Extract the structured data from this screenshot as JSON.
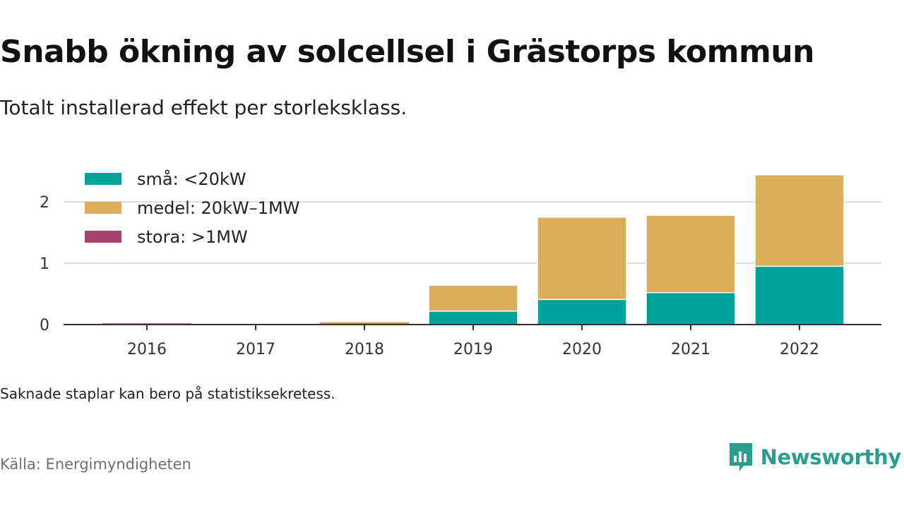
{
  "title": "Snabb ökning av solcellsel i Grästorps kommun",
  "subtitle": "Totalt installerad effekt per storleksklass.",
  "note": "Saknade staplar kan bero på statistiksekretess.",
  "source": "Källa: Energimyndigheten",
  "brand": {
    "name": "Newsworthy",
    "icon": "newsworthy-logo-icon",
    "color": "#2a9d8f"
  },
  "chart_data": {
    "type": "bar",
    "stacked": true,
    "categories": [
      "2016",
      "2017",
      "2018",
      "2019",
      "2020",
      "2021",
      "2022"
    ],
    "series": [
      {
        "name": "små: <20kW",
        "color": "#00a39a",
        "values": [
          0.02,
          0,
          0.02,
          0.22,
          0.41,
          0.52,
          0.95
        ]
      },
      {
        "name": "medel: 20kW–1MW",
        "color": "#dcad5b",
        "values": [
          0,
          0,
          0.02,
          0.42,
          1.34,
          1.26,
          1.49
        ]
      },
      {
        "name": "stora: >1MW",
        "color": "#a6426d",
        "values": [
          0,
          0,
          0,
          0,
          0,
          0,
          0
        ]
      }
    ],
    "yticks": [
      0,
      1,
      2
    ],
    "ylim": [
      0,
      2.5
    ],
    "grid": true,
    "legend_position": "top-left"
  }
}
